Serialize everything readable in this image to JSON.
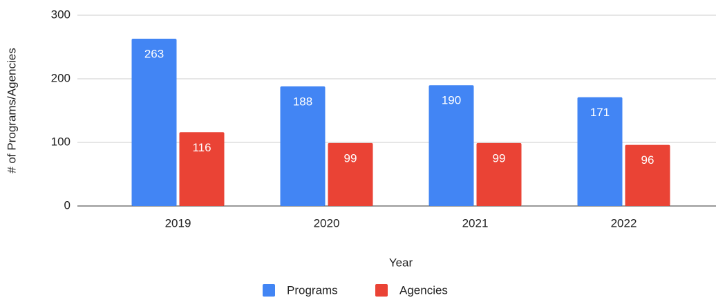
{
  "chart_data": {
    "type": "bar",
    "categories": [
      "2019",
      "2020",
      "2021",
      "2022"
    ],
    "series": [
      {
        "name": "Programs",
        "color": "#4285f4",
        "values": [
          263,
          188,
          190,
          171
        ]
      },
      {
        "name": "Agencies",
        "color": "#ea4335",
        "values": [
          116,
          99,
          99,
          96
        ]
      }
    ],
    "xlabel": "Year",
    "ylabel": "# of Programs/Agencies",
    "ylim": [
      0,
      300
    ],
    "yticks": [
      0,
      100,
      200,
      300
    ],
    "grid": true,
    "legend": "bottom"
  }
}
